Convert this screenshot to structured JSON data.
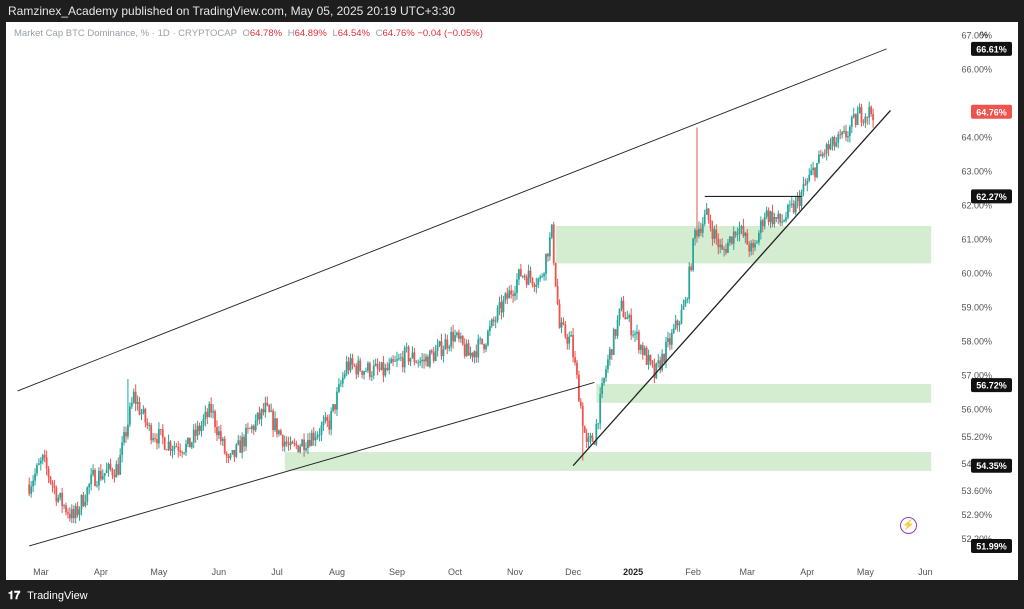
{
  "header": {
    "published_text": "Ramzinex_Academy published on TradingView.com, May 05, 2025 20:19 UTC+3:30"
  },
  "legend": {
    "symbol": "Market Cap BTC Dominance, % · 1D · CRYPTOCAP",
    "open_label": "O",
    "open": "64.78%",
    "high_label": "H",
    "high": "64.89%",
    "low_label": "L",
    "low": "64.54%",
    "close_label": "C",
    "close": "64.76%",
    "change": "−0.04 (−0.05%)"
  },
  "unit_label": "%",
  "footer": {
    "brand": "TradingView",
    "logo_text": "𝟏𝟕"
  },
  "colors": {
    "up": "#26a69a",
    "down": "#ef5350",
    "zone": "#d4edd0",
    "line": "#222222"
  },
  "chart_data": {
    "type": "candlestick",
    "title": "Market Cap BTC Dominance, % · 1D · CRYPTOCAP",
    "y_unit": "%",
    "ylim": [
      51.4,
      67.4
    ],
    "x_ticks": [
      "Mar",
      "Apr",
      "May",
      "Jun",
      "Jul",
      "Aug",
      "Sep",
      "Oct",
      "Nov",
      "Dec",
      "2025",
      "Feb",
      "Mar",
      "Apr",
      "May",
      "Jun"
    ],
    "y_ticks": [
      "67.00%",
      "66.00%",
      "64.00%",
      "63.00%",
      "62.00%",
      "61.00%",
      "60.00%",
      "59.00%",
      "58.00%",
      "57.00%",
      "56.00%",
      "55.20%",
      "54.40%",
      "53.60%",
      "52.90%",
      "52.20%"
    ],
    "y_tick_values": [
      67.0,
      66.0,
      64.0,
      63.0,
      62.0,
      61.0,
      60.0,
      59.0,
      58.0,
      57.0,
      56.0,
      55.2,
      54.4,
      53.6,
      52.9,
      52.2
    ],
    "price_badges": [
      {
        "label": "66.61%",
        "value": 66.61,
        "color": "#111111"
      },
      {
        "label": "64.76%",
        "value": 64.76,
        "color": "#ef5350"
      },
      {
        "label": "62.27%",
        "value": 62.27,
        "color": "#111111"
      },
      {
        "label": "56.72%",
        "value": 56.72,
        "color": "#111111"
      },
      {
        "label": "54.35%",
        "value": 54.35,
        "color": "#111111"
      },
      {
        "label": "51.99%",
        "value": 51.99,
        "color": "#111111"
      }
    ],
    "waypoints": [
      [
        "2024-02-24",
        53.8
      ],
      [
        "2024-03-02",
        54.5
      ],
      [
        "2024-03-10",
        53.4
      ],
      [
        "2024-03-18",
        52.8
      ],
      [
        "2024-03-28",
        54.0
      ],
      [
        "2024-04-10",
        54.3
      ],
      [
        "2024-04-18",
        56.4
      ],
      [
        "2024-04-26",
        55.4
      ],
      [
        "2024-05-06",
        55.0
      ],
      [
        "2024-05-16",
        54.9
      ],
      [
        "2024-05-28",
        56.0
      ],
      [
        "2024-06-06",
        54.4
      ],
      [
        "2024-06-16",
        55.3
      ],
      [
        "2024-06-25",
        56.0
      ],
      [
        "2024-07-08",
        54.8
      ],
      [
        "2024-07-18",
        55.2
      ],
      [
        "2024-07-28",
        55.6
      ],
      [
        "2024-08-06",
        57.3
      ],
      [
        "2024-08-15",
        57.2
      ],
      [
        "2024-08-26",
        57.1
      ],
      [
        "2024-09-06",
        57.6
      ],
      [
        "2024-09-14",
        57.4
      ],
      [
        "2024-09-22",
        57.7
      ],
      [
        "2024-09-30",
        58.2
      ],
      [
        "2024-10-08",
        57.6
      ],
      [
        "2024-10-16",
        58.0
      ],
      [
        "2024-10-24",
        58.9
      ],
      [
        "2024-11-04",
        60.0
      ],
      [
        "2024-11-14",
        59.8
      ],
      [
        "2024-11-20",
        61.2
      ],
      [
        "2024-11-24",
        58.4
      ],
      [
        "2024-11-30",
        58.0
      ],
      [
        "2024-12-04",
        56.5
      ],
      [
        "2024-12-08",
        54.9
      ],
      [
        "2024-12-12",
        55.2
      ],
      [
        "2024-12-18",
        57.2
      ],
      [
        "2024-12-26",
        59.0
      ],
      [
        "2025-01-04",
        58.0
      ],
      [
        "2025-01-12",
        57.0
      ],
      [
        "2025-01-20",
        58.0
      ],
      [
        "2025-01-28",
        59.1
      ],
      [
        "2025-02-02",
        61.2
      ],
      [
        "2025-02-08",
        61.7
      ],
      [
        "2025-02-16",
        60.6
      ],
      [
        "2025-02-24",
        61.4
      ],
      [
        "2025-03-04",
        60.6
      ],
      [
        "2025-03-10",
        61.8
      ],
      [
        "2025-03-18",
        61.5
      ],
      [
        "2025-03-26",
        62.0
      ],
      [
        "2025-04-02",
        62.8
      ],
      [
        "2025-04-10",
        63.6
      ],
      [
        "2025-04-20",
        64.0
      ],
      [
        "2025-04-28",
        64.7
      ],
      [
        "2025-05-05",
        64.76
      ]
    ],
    "spikes": [
      {
        "date": "2025-02-03",
        "high": 64.3
      },
      {
        "date": "2024-04-15",
        "high": 56.9
      },
      {
        "date": "2024-12-06",
        "low": 54.5
      }
    ],
    "channel_upper": {
      "start": [
        "2024-02-18",
        56.55
      ],
      "end": [
        "2025-05-12",
        66.61
      ]
    },
    "channel_lower": {
      "start": [
        "2024-02-24",
        51.99
      ],
      "end": [
        "2024-12-12",
        56.8
      ]
    },
    "trendline_rising": {
      "start": [
        "2024-12-01",
        54.35
      ],
      "end": [
        "2025-05-14",
        64.8
      ]
    },
    "triangle_top": {
      "start": [
        "2025-02-07",
        62.27
      ],
      "end": [
        "2025-03-29",
        62.27
      ]
    },
    "zones": [
      {
        "from": "2024-11-22",
        "to": "2025-06-04",
        "low": 60.3,
        "high": 61.4
      },
      {
        "from": "2024-12-13",
        "to": "2025-06-04",
        "low": 56.2,
        "high": 56.75
      },
      {
        "from": "2024-07-05",
        "to": "2025-06-04",
        "low": 54.2,
        "high": 54.75
      }
    ]
  }
}
